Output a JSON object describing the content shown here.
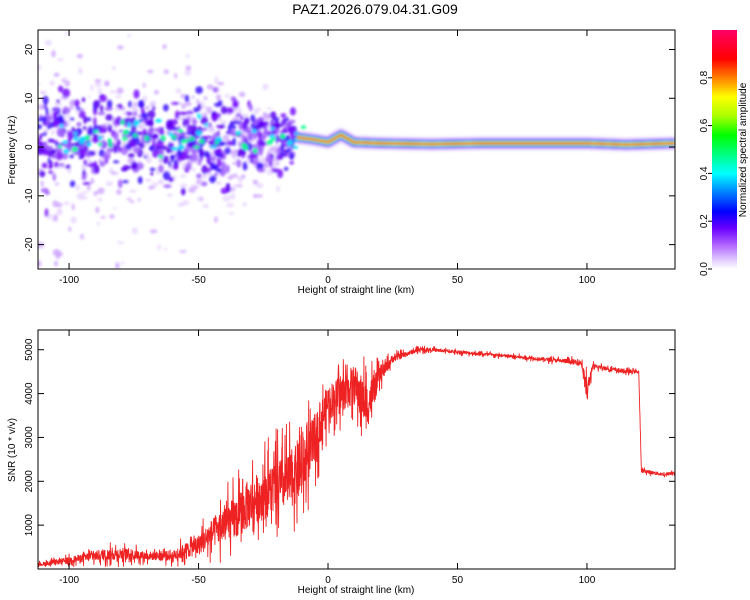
{
  "title": "PAZ1.2026.079.04.31.G09",
  "chart_data": [
    {
      "type": "heatmap",
      "name": "spectrogram",
      "xlabel": "Height of straight line (km)",
      "ylabel": "Frequency (Hz)",
      "xlim": [
        -112,
        134
      ],
      "ylim": [
        -25,
        24
      ],
      "xticks": [
        -100,
        -50,
        0,
        50,
        100
      ],
      "yticks": [
        -20,
        -10,
        0,
        10,
        20
      ],
      "colorbar": {
        "label": "Normalized spectral amplitude",
        "range": [
          0,
          1
        ],
        "ticks": [
          "0.0",
          "0.2",
          "0.4",
          "0.6",
          "0.8"
        ],
        "colors": [
          "#ffffff",
          "#d9b3ff",
          "#a64dff",
          "#6a0dff",
          "#0000ff",
          "#0080ff",
          "#00ffff",
          "#00ff80",
          "#00ff00",
          "#80ff00",
          "#ffff00",
          "#ff8000",
          "#ff0000",
          "#ff0066"
        ]
      },
      "ridge": {
        "description": "Single spectral line near 1 Hz from about -12 km to 134 km; scattered multi-frequency energy below -15 km",
        "points": [
          [
            -12,
            2.0
          ],
          [
            -5,
            1.5
          ],
          [
            0,
            1.0
          ],
          [
            5,
            2.5
          ],
          [
            10,
            1.0
          ],
          [
            20,
            0.8
          ],
          [
            40,
            0.6
          ],
          [
            60,
            0.8
          ],
          [
            80,
            0.8
          ],
          [
            100,
            0.8
          ],
          [
            115,
            0.5
          ],
          [
            134,
            0.8
          ]
        ]
      }
    },
    {
      "type": "line",
      "name": "snr",
      "xlabel": "Height of straight line (km)",
      "ylabel": "SNR (10 * v/v)",
      "xlim": [
        -112,
        134
      ],
      "ylim": [
        0,
        5450
      ],
      "xticks": [
        -100,
        -50,
        0,
        50,
        100
      ],
      "yticks": [
        1000,
        2000,
        3000,
        4000,
        5000
      ],
      "series": [
        {
          "name": "SNR",
          "color": "#ee2222",
          "x": [
            -112,
            -100,
            -90,
            -80,
            -70,
            -60,
            -50,
            -45,
            -40,
            -35,
            -30,
            -25,
            -20,
            -15,
            -10,
            -5,
            0,
            5,
            10,
            15,
            20,
            25,
            30,
            35,
            40,
            50,
            60,
            70,
            80,
            90,
            98,
            100,
            102,
            105,
            110,
            115,
            120,
            121,
            125,
            130,
            134
          ],
          "y": [
            100,
            200,
            300,
            350,
            300,
            300,
            550,
            800,
            1000,
            1200,
            1500,
            1700,
            1900,
            2000,
            2300,
            3000,
            3800,
            4000,
            4200,
            3700,
            4400,
            4800,
            4900,
            5000,
            5000,
            4950,
            4900,
            4850,
            4800,
            4750,
            4700,
            4000,
            4600,
            4600,
            4550,
            4500,
            4500,
            2250,
            2200,
            2150,
            2200
          ],
          "noise": [
            80,
            150,
            250,
            300,
            200,
            250,
            500,
            700,
            900,
            1100,
            1200,
            1300,
            1300,
            1400,
            1500,
            1200,
            900,
            900,
            1000,
            1200,
            400,
            200,
            120,
            100,
            80,
            80,
            80,
            80,
            80,
            100,
            150,
            600,
            150,
            100,
            100,
            100,
            80,
            80,
            80,
            80,
            80
          ]
        }
      ]
    }
  ]
}
